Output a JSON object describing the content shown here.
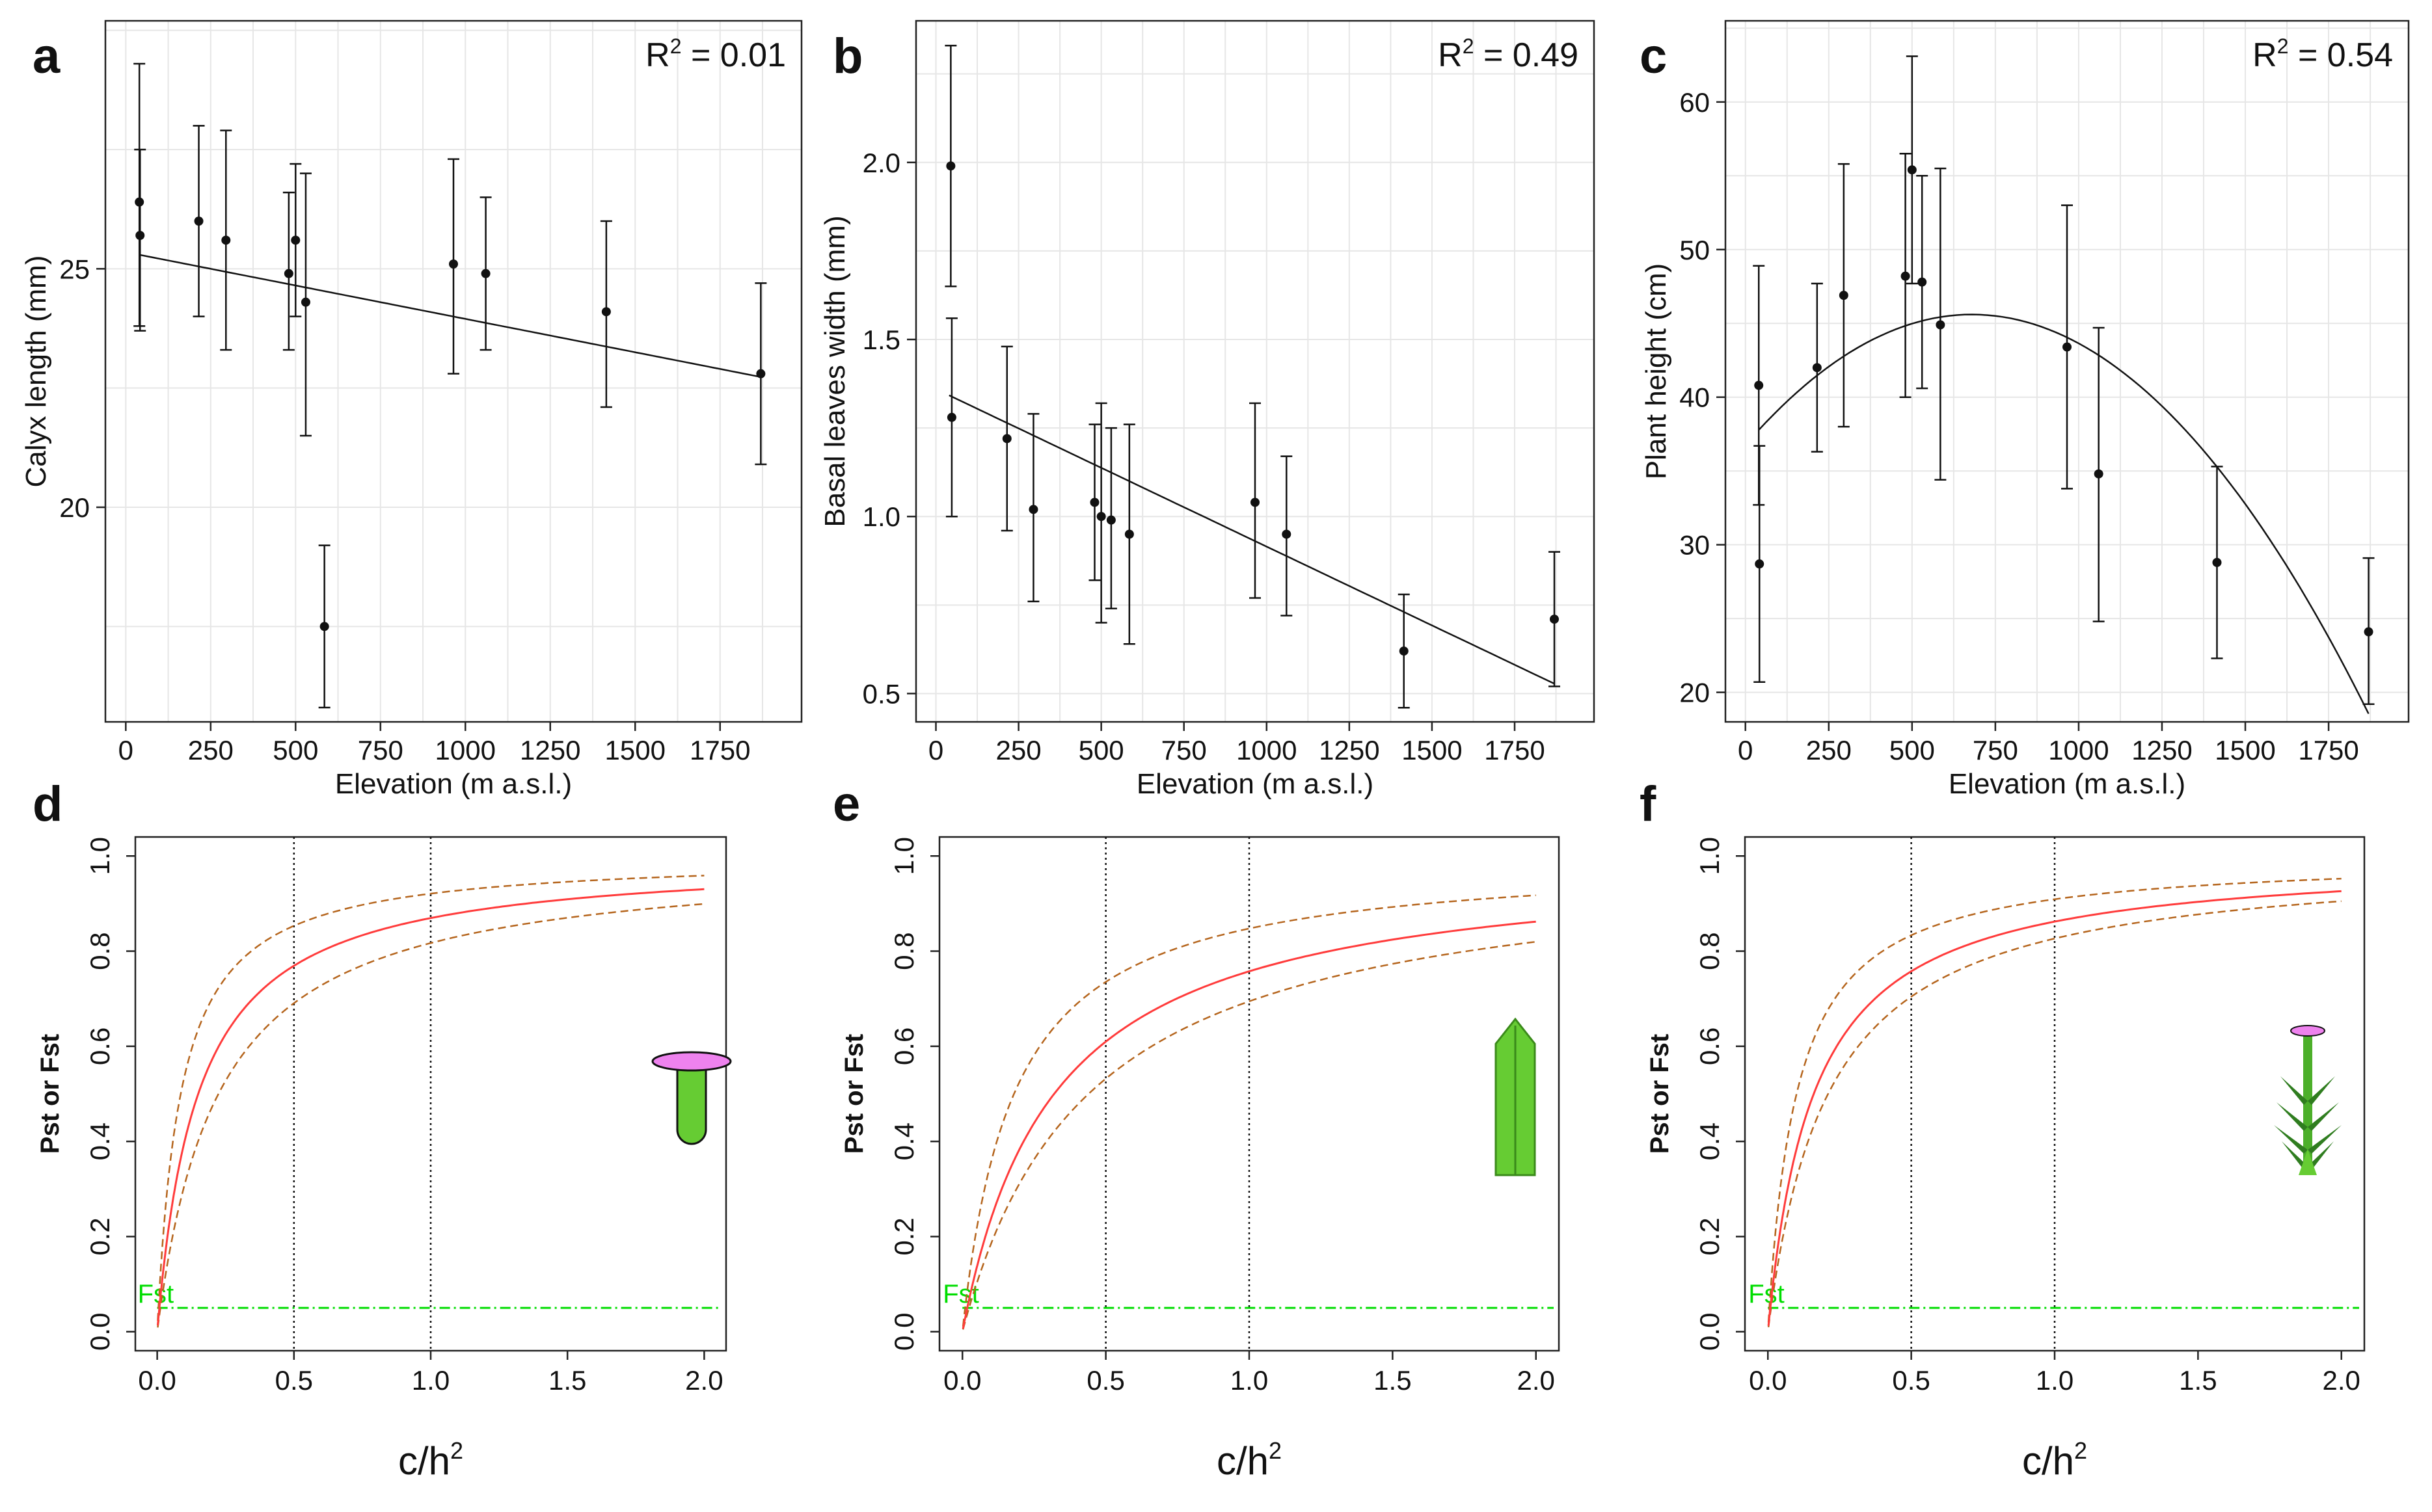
{
  "chart_data": [
    {
      "panel": "a",
      "type": "scatter",
      "xlabel": "Elevation (m a.s.l.)",
      "ylabel": "Calyx length (mm)",
      "annotation": {
        "text": "R",
        "sup": "2",
        "rest": " = 0.01"
      },
      "xlim": [
        -60,
        1990
      ],
      "ylim": [
        15.5,
        30.2
      ],
      "xticks": [
        0,
        250,
        500,
        750,
        1000,
        1250,
        1500,
        1750
      ],
      "yticks": [
        20,
        25
      ],
      "grid": true,
      "fit": {
        "kind": "linear",
        "intercept": 25.35,
        "slope": -0.0014,
        "x_range": [
          40,
          1870
        ]
      },
      "points": [
        {
          "x": 40,
          "y": 26.4,
          "lo": 23.8,
          "hi": 29.3
        },
        {
          "x": 42,
          "y": 25.7,
          "lo": 23.7,
          "hi": 27.5
        },
        {
          "x": 215,
          "y": 26.0,
          "lo": 24.0,
          "hi": 28.0
        },
        {
          "x": 295,
          "y": 25.6,
          "lo": 23.3,
          "hi": 27.9
        },
        {
          "x": 480,
          "y": 24.9,
          "lo": 23.3,
          "hi": 26.6
        },
        {
          "x": 500,
          "y": 25.6,
          "lo": 24.0,
          "hi": 27.2
        },
        {
          "x": 530,
          "y": 24.3,
          "lo": 21.5,
          "hi": 27.0
        },
        {
          "x": 585,
          "y": 17.5,
          "lo": 15.8,
          "hi": 19.2
        },
        {
          "x": 965,
          "y": 25.1,
          "lo": 22.8,
          "hi": 27.3
        },
        {
          "x": 1060,
          "y": 24.9,
          "lo": 23.3,
          "hi": 26.5
        },
        {
          "x": 1415,
          "y": 24.1,
          "lo": 22.1,
          "hi": 26.0
        },
        {
          "x": 1870,
          "y": 22.8,
          "lo": 20.9,
          "hi": 24.7
        }
      ]
    },
    {
      "panel": "b",
      "type": "scatter",
      "xlabel": "Elevation (m a.s.l.)",
      "ylabel": "Basal leaves width (mm)",
      "annotation": {
        "text": "R",
        "sup": "2",
        "rest": " = 0.49"
      },
      "xlim": [
        -60,
        1990
      ],
      "ylim": [
        0.42,
        2.4
      ],
      "xticks": [
        0,
        250,
        500,
        750,
        1000,
        1250,
        1500,
        1750
      ],
      "yticks": [
        0.5,
        1.0,
        1.5,
        2.0
      ],
      "grid": true,
      "fit": {
        "kind": "linear",
        "intercept": 1.36,
        "slope": -0.000445,
        "x_range": [
          40,
          1870
        ]
      },
      "points": [
        {
          "x": 45,
          "y": 1.99,
          "lo": 1.65,
          "hi": 2.33
        },
        {
          "x": 48,
          "y": 1.28,
          "lo": 1.0,
          "hi": 1.56
        },
        {
          "x": 215,
          "y": 1.22,
          "lo": 0.96,
          "hi": 1.48
        },
        {
          "x": 295,
          "y": 1.02,
          "lo": 0.76,
          "hi": 1.29
        },
        {
          "x": 480,
          "y": 1.04,
          "lo": 0.82,
          "hi": 1.26
        },
        {
          "x": 500,
          "y": 1.0,
          "lo": 0.7,
          "hi": 1.32
        },
        {
          "x": 530,
          "y": 0.99,
          "lo": 0.74,
          "hi": 1.25
        },
        {
          "x": 585,
          "y": 0.95,
          "lo": 0.64,
          "hi": 1.26
        },
        {
          "x": 965,
          "y": 1.04,
          "lo": 0.77,
          "hi": 1.32
        },
        {
          "x": 1060,
          "y": 0.95,
          "lo": 0.72,
          "hi": 1.17
        },
        {
          "x": 1415,
          "y": 0.62,
          "lo": 0.46,
          "hi": 0.78
        },
        {
          "x": 1870,
          "y": 0.71,
          "lo": 0.52,
          "hi": 0.9
        }
      ]
    },
    {
      "panel": "c",
      "type": "scatter",
      "xlabel": "Elevation (m a.s.l.)",
      "ylabel": "Plant height (cm)",
      "annotation": {
        "text": "R",
        "sup": "2",
        "rest": " = 0.54"
      },
      "xlim": [
        -60,
        1990
      ],
      "ylim": [
        18,
        65.5
      ],
      "xticks": [
        0,
        250,
        500,
        750,
        1000,
        1250,
        1500,
        1750
      ],
      "yticks": [
        20,
        30,
        40,
        50,
        60
      ],
      "grid": true,
      "fit": {
        "kind": "quadratic",
        "vertex_x": 680,
        "vertex_y": 45.6,
        "a": -1.91e-05,
        "x_range": [
          40,
          1870
        ]
      },
      "points": [
        {
          "x": 40,
          "y": 40.8,
          "lo": 32.7,
          "hi": 48.9
        },
        {
          "x": 42,
          "y": 28.7,
          "lo": 20.7,
          "hi": 36.7
        },
        {
          "x": 215,
          "y": 42.0,
          "lo": 36.3,
          "hi": 47.7
        },
        {
          "x": 295,
          "y": 46.9,
          "lo": 38.0,
          "hi": 55.8
        },
        {
          "x": 480,
          "y": 48.2,
          "lo": 40.0,
          "hi": 56.5
        },
        {
          "x": 500,
          "y": 55.4,
          "lo": 47.7,
          "hi": 63.1
        },
        {
          "x": 530,
          "y": 47.8,
          "lo": 40.6,
          "hi": 55.0
        },
        {
          "x": 585,
          "y": 44.9,
          "lo": 34.4,
          "hi": 55.5
        },
        {
          "x": 965,
          "y": 43.4,
          "lo": 33.8,
          "hi": 53.0
        },
        {
          "x": 1060,
          "y": 34.8,
          "lo": 24.8,
          "hi": 44.7
        },
        {
          "x": 1415,
          "y": 28.8,
          "lo": 22.3,
          "hi": 35.3
        },
        {
          "x": 1870,
          "y": 24.1,
          "lo": 19.2,
          "hi": 29.1
        }
      ]
    },
    {
      "panel": "d",
      "type": "line",
      "xlabel": "c/h",
      "xlabel_sup": "2",
      "ylabel": "Pst or Fst",
      "xlim": [
        -0.08,
        2.08
      ],
      "ylim": [
        -0.04,
        1.04
      ],
      "xticks": [
        0.0,
        0.5,
        1.0,
        1.5,
        2.0
      ],
      "yticks": [
        0.0,
        0.2,
        0.4,
        0.6,
        0.8,
        1.0
      ],
      "vlines": [
        0.5,
        1.0
      ],
      "fst": {
        "label": "Fst",
        "value": 0.05
      },
      "curve": {
        "name": "Pst",
        "k": 0.075,
        "lower_k": 0.112,
        "upper_k": 0.043
      },
      "icon": "calyx-icon"
    },
    {
      "panel": "e",
      "type": "line",
      "xlabel": "c/h",
      "xlabel_sup": "2",
      "ylabel": "Pst or Fst",
      "xlim": [
        -0.08,
        2.08
      ],
      "ylim": [
        -0.04,
        1.04
      ],
      "xticks": [
        0.0,
        0.5,
        1.0,
        1.5,
        2.0
      ],
      "yticks": [
        0.0,
        0.2,
        0.4,
        0.6,
        0.8,
        1.0
      ],
      "vlines": [
        0.5,
        1.0
      ],
      "fst": {
        "label": "Fst",
        "value": 0.05
      },
      "curve": {
        "name": "Pst",
        "k": 0.16,
        "lower_k": 0.22,
        "upper_k": 0.09
      },
      "icon": "leaf-icon"
    },
    {
      "panel": "f",
      "type": "line",
      "xlabel": "c/h",
      "xlabel_sup": "2",
      "ylabel": "Pst or Fst",
      "xlim": [
        -0.08,
        2.08
      ],
      "ylim": [
        -0.04,
        1.04
      ],
      "xticks": [
        0.0,
        0.5,
        1.0,
        1.5,
        2.0
      ],
      "yticks": [
        0.0,
        0.2,
        0.4,
        0.6,
        0.8,
        1.0
      ],
      "vlines": [
        0.5,
        1.0
      ],
      "fst": {
        "label": "Fst",
        "value": 0.05
      },
      "curve": {
        "name": "Pst",
        "k": 0.08,
        "lower_k": 0.105,
        "upper_k": 0.05
      },
      "icon": "plant-icon"
    }
  ],
  "colors": {
    "pst_curve": "#ff3b3b",
    "ci": "#b5651d",
    "fst": "#00dd00",
    "grid": "#e6e6e6",
    "icon_pink": "#ee82ee",
    "icon_green": "#66cc33"
  }
}
